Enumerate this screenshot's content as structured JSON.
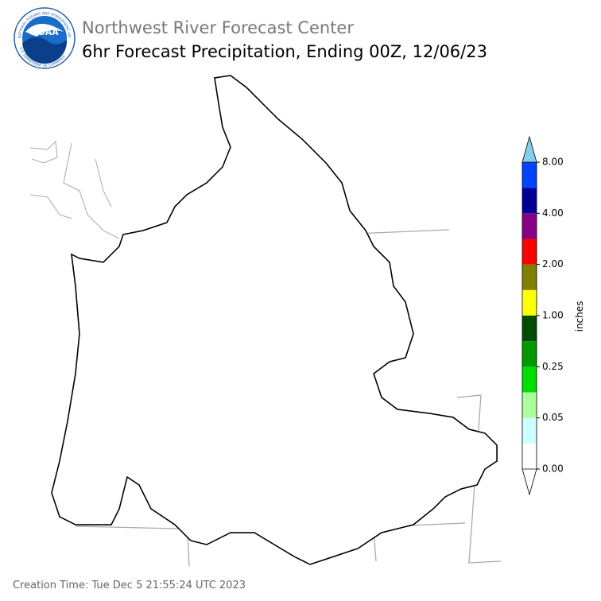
{
  "header": {
    "org": "Northwest River Forecast Center",
    "title": "6hr Forecast Precipitation, Ending 00Z, 12/06/23"
  },
  "logo": {
    "text": "NOAA",
    "ring_top": "NATIONAL OCEANIC AND ATMOSPHERIC ADMINISTRATION",
    "ring_bottom": "U.S. DEPARTMENT OF COMMERCE"
  },
  "colorbar": {
    "label": "inches",
    "ticks": [
      "0.00",
      "0.05",
      "0.25",
      "1.00",
      "2.00",
      "4.00",
      "8.00"
    ],
    "under_color": "#ffffff",
    "over_color": "#87ceeb",
    "colors": [
      "#ffffff",
      "#ccffff",
      "#aaff99",
      "#00dd00",
      "#009900",
      "#004d00",
      "#ffff00",
      "#808000",
      "#ff0000",
      "#880088",
      "#000099",
      "#0044ff"
    ]
  },
  "footer": "Creation Time: Tue Dec 5 21:55:24 UTC 2023"
}
